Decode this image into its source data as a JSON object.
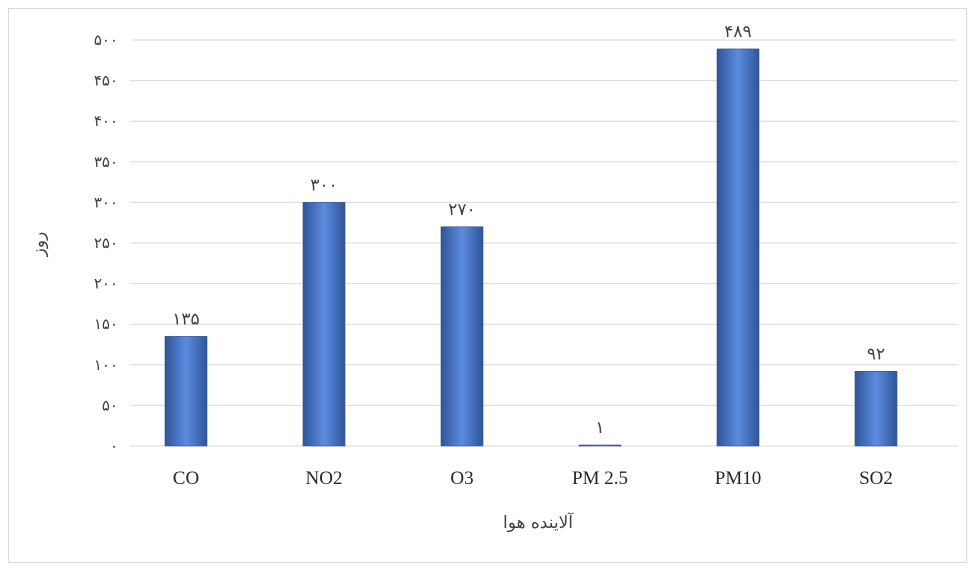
{
  "chart_data": {
    "type": "bar",
    "categories": [
      "CO",
      "NO2",
      "O3",
      "PM 2.5",
      "PM10",
      "SO2"
    ],
    "values": [
      135,
      300,
      270,
      1,
      489,
      92
    ],
    "data_labels": [
      "۱۳۵",
      "۳۰۰",
      "۲۷۰",
      "۱",
      "۴۸۹",
      "۹۲"
    ],
    "y_ticks": [
      0,
      50,
      100,
      150,
      200,
      250,
      300,
      350,
      400,
      450,
      500
    ],
    "y_tick_labels": [
      "۰",
      "۵۰",
      "۱۰۰",
      "۱۵۰",
      "۲۰۰",
      "۲۵۰",
      "۳۰۰",
      "۳۵۰",
      "۴۰۰",
      "۴۵۰",
      "۵۰۰"
    ],
    "ylim": [
      0,
      500
    ],
    "xlabel": "آلاینده هوا",
    "ylabel": "روز",
    "title": "",
    "grid": true,
    "legend": "none",
    "colors": {
      "bar": "#4472c4",
      "bar_light": "#5b8be0",
      "bar_dark": "#2f5597",
      "grid": "#d9d9d9",
      "text": "#404040"
    }
  }
}
